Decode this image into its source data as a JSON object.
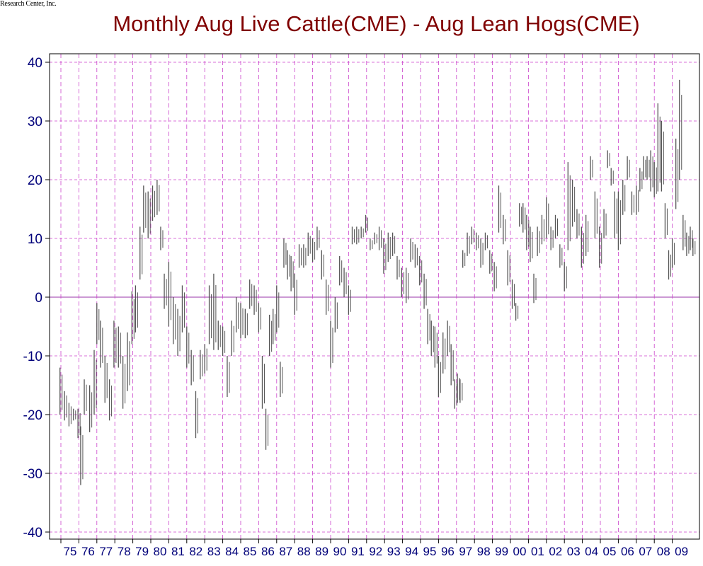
{
  "credit": "Research Center, Inc.",
  "colors": {
    "title": "#800000",
    "axis_text": "#00007a",
    "grid": "#cc44cc",
    "bars": "#555555",
    "zero_line": "#9933aa"
  },
  "chart_data": {
    "type": "bar",
    "style": "monthly high-low range bars",
    "title": "Monthly Aug Live Cattle(CME) - Aug Lean Hogs(CME)",
    "xlabel": "",
    "ylabel": "",
    "ylim": [
      -42,
      42
    ],
    "y_ticks": [
      40,
      30,
      20,
      10,
      0,
      -10,
      -20,
      -30,
      -40
    ],
    "x_tick_labels": [
      "75",
      "76",
      "77",
      "78",
      "79",
      "80",
      "81",
      "82",
      "83",
      "84",
      "85",
      "86",
      "87",
      "88",
      "89",
      "90",
      "91",
      "92",
      "93",
      "94",
      "95",
      "96",
      "97",
      "98",
      "99",
      "00",
      "01",
      "02",
      "03",
      "04",
      "05",
      "06",
      "07",
      "08",
      "09"
    ],
    "grid": "dashed, both axes",
    "zero_line": true,
    "series": [
      {
        "values": [
          {
            "t": 1974.95,
            "low": -20,
            "high": -12
          },
          {
            "t": 1975.2,
            "low": -21,
            "high": -16
          },
          {
            "t": 1975.45,
            "low": -22,
            "high": -18
          },
          {
            "t": 1975.7,
            "low": -21,
            "high": -19
          },
          {
            "t": 1975.95,
            "low": -24,
            "high": -19
          },
          {
            "t": 1976.1,
            "low": -32,
            "high": -22
          },
          {
            "t": 1976.3,
            "low": -20,
            "high": -14
          },
          {
            "t": 1976.6,
            "low": -23,
            "high": -15
          },
          {
            "t": 1976.85,
            "low": -20,
            "high": -9
          },
          {
            "t": 1977.0,
            "low": -8,
            "high": -1
          },
          {
            "t": 1977.2,
            "low": -12,
            "high": -4
          },
          {
            "t": 1977.45,
            "low": -18,
            "high": -10
          },
          {
            "t": 1977.7,
            "low": -21,
            "high": -14
          },
          {
            "t": 1977.95,
            "low": -12,
            "high": -4
          },
          {
            "t": 1978.2,
            "low": -12,
            "high": -5
          },
          {
            "t": 1978.45,
            "low": -19,
            "high": -10
          },
          {
            "t": 1978.7,
            "low": -16,
            "high": -6
          },
          {
            "t": 1978.95,
            "low": -8,
            "high": 1
          },
          {
            "t": 1979.15,
            "low": -6,
            "high": 2
          },
          {
            "t": 1979.4,
            "low": 3,
            "high": 12
          },
          {
            "t": 1979.6,
            "low": 11,
            "high": 19
          },
          {
            "t": 1979.85,
            "low": 10,
            "high": 18
          },
          {
            "t": 1980.1,
            "low": 13,
            "high": 19
          },
          {
            "t": 1980.35,
            "low": 14,
            "high": 20
          },
          {
            "t": 1980.55,
            "low": 8,
            "high": 12
          },
          {
            "t": 1980.75,
            "low": -2,
            "high": 4
          },
          {
            "t": 1981.0,
            "low": -5,
            "high": 6
          },
          {
            "t": 1981.25,
            "low": -8,
            "high": 0
          },
          {
            "t": 1981.5,
            "low": -10,
            "high": -2
          },
          {
            "t": 1981.75,
            "low": -6,
            "high": 2
          },
          {
            "t": 1982.0,
            "low": -12,
            "high": -5
          },
          {
            "t": 1982.25,
            "low": -15,
            "high": -9
          },
          {
            "t": 1982.5,
            "low": -24,
            "high": -16
          },
          {
            "t": 1982.75,
            "low": -14,
            "high": -9
          },
          {
            "t": 1983.0,
            "low": -13,
            "high": -8
          },
          {
            "t": 1983.25,
            "low": -8,
            "high": 2
          },
          {
            "t": 1983.5,
            "low": -9,
            "high": 4
          },
          {
            "t": 1983.75,
            "low": -9,
            "high": -4
          },
          {
            "t": 1984.0,
            "low": -10,
            "high": -5
          },
          {
            "t": 1984.25,
            "low": -17,
            "high": -10
          },
          {
            "t": 1984.5,
            "low": -10,
            "high": -4
          },
          {
            "t": 1984.75,
            "low": -6,
            "high": 0
          },
          {
            "t": 1985.0,
            "low": -7,
            "high": -1
          },
          {
            "t": 1985.25,
            "low": -7,
            "high": -2
          },
          {
            "t": 1985.5,
            "low": -2,
            "high": 3
          },
          {
            "t": 1985.75,
            "low": -3,
            "high": 2
          },
          {
            "t": 1986.0,
            "low": -6,
            "high": -1
          },
          {
            "t": 1986.2,
            "low": -19,
            "high": -10
          },
          {
            "t": 1986.4,
            "low": -26,
            "high": -19
          },
          {
            "t": 1986.6,
            "low": -10,
            "high": -3
          },
          {
            "t": 1986.8,
            "low": -8,
            "high": -2
          },
          {
            "t": 1987.0,
            "low": -6,
            "high": 2
          },
          {
            "t": 1987.2,
            "low": -17,
            "high": -11
          },
          {
            "t": 1987.4,
            "low": 5,
            "high": 10
          },
          {
            "t": 1987.6,
            "low": 3,
            "high": 8
          },
          {
            "t": 1987.8,
            "low": 1,
            "high": 7
          },
          {
            "t": 1988.0,
            "low": -3,
            "high": 4
          },
          {
            "t": 1988.25,
            "low": 5,
            "high": 9
          },
          {
            "t": 1988.5,
            "low": 5,
            "high": 9
          },
          {
            "t": 1988.75,
            "low": 7,
            "high": 11
          },
          {
            "t": 1989.0,
            "low": 6,
            "high": 10
          },
          {
            "t": 1989.25,
            "low": 8,
            "high": 12
          },
          {
            "t": 1989.5,
            "low": 3,
            "high": 8
          },
          {
            "t": 1989.75,
            "low": -3,
            "high": 3
          },
          {
            "t": 1990.0,
            "low": -12,
            "high": -4
          },
          {
            "t": 1990.25,
            "low": -6,
            "high": 0
          },
          {
            "t": 1990.5,
            "low": 2,
            "high": 7
          },
          {
            "t": 1990.75,
            "low": 0,
            "high": 5
          },
          {
            "t": 1991.0,
            "low": -3,
            "high": 2
          },
          {
            "t": 1991.2,
            "low": 9,
            "high": 12
          },
          {
            "t": 1991.45,
            "low": 9,
            "high": 12
          },
          {
            "t": 1991.7,
            "low": 10,
            "high": 12
          },
          {
            "t": 1991.95,
            "low": 11,
            "high": 14
          },
          {
            "t": 1992.2,
            "low": 8,
            "high": 10
          },
          {
            "t": 1992.45,
            "low": 9,
            "high": 11
          },
          {
            "t": 1992.7,
            "low": 8,
            "high": 12
          },
          {
            "t": 1992.95,
            "low": 4,
            "high": 10
          },
          {
            "t": 1993.2,
            "low": 6,
            "high": 11
          },
          {
            "t": 1993.45,
            "low": 7,
            "high": 11
          },
          {
            "t": 1993.7,
            "low": 3,
            "high": 7
          },
          {
            "t": 1993.95,
            "low": 0,
            "high": 5
          },
          {
            "t": 1994.2,
            "low": -1,
            "high": 5
          },
          {
            "t": 1994.45,
            "low": 6,
            "high": 10
          },
          {
            "t": 1994.7,
            "low": 5,
            "high": 9
          },
          {
            "t": 1994.95,
            "low": 2,
            "high": 7
          },
          {
            "t": 1995.2,
            "low": -2,
            "high": 4
          },
          {
            "t": 1995.4,
            "low": -8,
            "high": -2
          },
          {
            "t": 1995.6,
            "low": -10,
            "high": -4
          },
          {
            "t": 1995.8,
            "low": -12,
            "high": -5
          },
          {
            "t": 1996.0,
            "low": -17,
            "high": -10
          },
          {
            "t": 1996.25,
            "low": -13,
            "high": -6
          },
          {
            "t": 1996.5,
            "low": -10,
            "high": -4
          },
          {
            "t": 1996.7,
            "low": -15,
            "high": -8
          },
          {
            "t": 1996.9,
            "low": -19,
            "high": -14
          },
          {
            "t": 1997.05,
            "low": -18,
            "high": -13
          },
          {
            "t": 1997.2,
            "low": -18,
            "high": -14
          },
          {
            "t": 1997.35,
            "low": 5,
            "high": 8
          },
          {
            "t": 1997.6,
            "low": 7,
            "high": 11
          },
          {
            "t": 1997.85,
            "low": 9,
            "high": 12
          },
          {
            "t": 1998.1,
            "low": 8,
            "high": 11
          },
          {
            "t": 1998.35,
            "low": 5,
            "high": 10
          },
          {
            "t": 1998.6,
            "low": 8,
            "high": 11
          },
          {
            "t": 1998.85,
            "low": 4,
            "high": 8
          },
          {
            "t": 1999.1,
            "low": 1,
            "high": 6
          },
          {
            "t": 1999.35,
            "low": 11,
            "high": 19
          },
          {
            "t": 1999.6,
            "low": 9,
            "high": 14
          },
          {
            "t": 1999.85,
            "low": 2,
            "high": 8
          },
          {
            "t": 2000.1,
            "low": -2,
            "high": 3
          },
          {
            "t": 2000.3,
            "low": -4,
            "high": -1
          },
          {
            "t": 2000.5,
            "low": 12,
            "high": 16
          },
          {
            "t": 2000.7,
            "low": 11,
            "high": 16
          },
          {
            "t": 2000.9,
            "low": 8,
            "high": 14
          },
          {
            "t": 2001.1,
            "low": 6,
            "high": 12
          },
          {
            "t": 2001.3,
            "low": -1,
            "high": 4
          },
          {
            "t": 2001.5,
            "low": 7,
            "high": 12
          },
          {
            "t": 2001.75,
            "low": 9,
            "high": 14
          },
          {
            "t": 2002.0,
            "low": 10,
            "high": 17
          },
          {
            "t": 2002.25,
            "low": 8,
            "high": 12
          },
          {
            "t": 2002.5,
            "low": 10,
            "high": 14
          },
          {
            "t": 2002.75,
            "low": 5,
            "high": 9
          },
          {
            "t": 2003.0,
            "low": 1,
            "high": 6
          },
          {
            "t": 2003.2,
            "low": 8,
            "high": 23
          },
          {
            "t": 2003.45,
            "low": 12,
            "high": 20
          },
          {
            "t": 2003.7,
            "low": 10,
            "high": 15
          },
          {
            "t": 2003.95,
            "low": 5,
            "high": 12
          },
          {
            "t": 2004.2,
            "low": 7,
            "high": 14
          },
          {
            "t": 2004.45,
            "low": 20,
            "high": 24
          },
          {
            "t": 2004.7,
            "low": 10,
            "high": 18
          },
          {
            "t": 2004.95,
            "low": 5,
            "high": 12
          },
          {
            "t": 2005.2,
            "low": 10,
            "high": 15
          },
          {
            "t": 2005.4,
            "low": 22,
            "high": 25
          },
          {
            "t": 2005.6,
            "low": 19,
            "high": 22
          },
          {
            "t": 2005.8,
            "low": 10,
            "high": 18
          },
          {
            "t": 2006.0,
            "low": 8,
            "high": 18
          },
          {
            "t": 2006.25,
            "low": 14,
            "high": 20
          },
          {
            "t": 2006.5,
            "low": 20,
            "high": 24
          },
          {
            "t": 2006.75,
            "low": 14,
            "high": 18
          },
          {
            "t": 2007.0,
            "low": 14,
            "high": 19
          },
          {
            "t": 2007.2,
            "low": 18,
            "high": 22
          },
          {
            "t": 2007.4,
            "low": 20,
            "high": 24
          },
          {
            "t": 2007.6,
            "low": 20,
            "high": 24
          },
          {
            "t": 2007.8,
            "low": 18,
            "high": 25
          },
          {
            "t": 2008.0,
            "low": 17,
            "high": 23
          },
          {
            "t": 2008.2,
            "low": 18,
            "high": 33
          },
          {
            "t": 2008.4,
            "low": 18,
            "high": 30
          },
          {
            "t": 2008.6,
            "low": 10,
            "high": 16
          },
          {
            "t": 2008.8,
            "low": 3,
            "high": 8
          },
          {
            "t": 2009.0,
            "low": 5,
            "high": 10
          },
          {
            "t": 2009.2,
            "low": 15,
            "high": 27
          },
          {
            "t": 2009.4,
            "low": 20,
            "high": 37
          },
          {
            "t": 2009.6,
            "low": 8,
            "high": 14
          },
          {
            "t": 2009.8,
            "low": 7,
            "high": 11
          },
          {
            "t": 2010.0,
            "low": 8,
            "high": 12
          },
          {
            "t": 2010.15,
            "low": 7,
            "high": 10
          }
        ]
      }
    ]
  }
}
